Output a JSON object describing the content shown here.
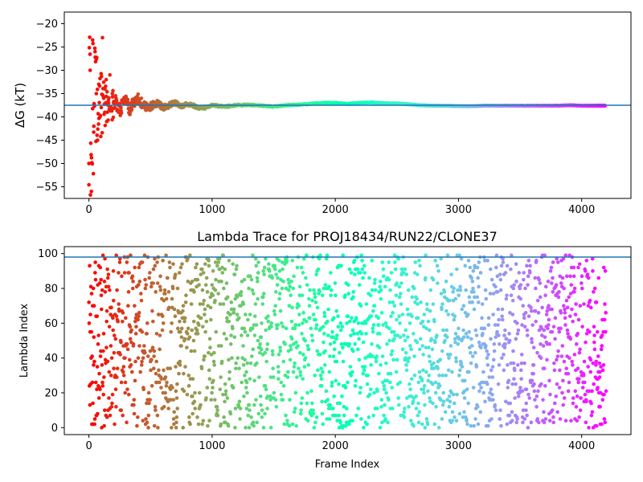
{
  "chart_data": [
    {
      "type": "scatter",
      "title": "",
      "xlabel": "",
      "ylabel": "ΔG (kT)",
      "xlim": [
        -200,
        4400
      ],
      "ylim": [
        -57.5,
        -17.5
      ],
      "xticks": [
        0,
        1000,
        2000,
        3000,
        4000
      ],
      "yticks": [
        -55,
        -50,
        -45,
        -40,
        -35,
        -30,
        -25,
        -20
      ],
      "hline": -37.5,
      "hline_color": "#1f77b4",
      "colormap": "rainbow (reversed: red at start, violet at end)",
      "grid": false,
      "description": "Running free energy estimate per frame; large scatter (-57 to -23) in first ~200 frames converging to about -37.5",
      "series": [
        {
          "x": [
            0,
            10,
            20,
            30,
            40,
            50,
            60,
            70,
            80,
            90,
            100,
            110,
            120,
            130,
            140,
            150,
            160,
            170,
            180,
            190,
            200,
            220,
            240,
            260,
            280,
            300,
            330,
            360,
            400,
            440,
            480,
            520,
            560,
            600,
            650,
            700,
            750,
            800,
            850,
            900,
            950,
            1000,
            1100,
            1200,
            1300,
            1400,
            1500,
            1600,
            1700,
            1800,
            1900,
            2000,
            2100,
            2200,
            2300,
            2400,
            2500,
            2600,
            2700,
            2800,
            2900,
            3000,
            3100,
            3200,
            3300,
            3400,
            3500,
            3600,
            3700,
            3800,
            3900,
            4000,
            4100,
            4190
          ],
          "y": [
            -50,
            -30,
            -56,
            -23.5,
            -42,
            -26,
            -35,
            -45,
            -33,
            -40,
            -38,
            -23,
            -36,
            -34,
            -32,
            -39,
            -37,
            -31,
            -38,
            -35,
            -37,
            -36,
            -39,
            -38,
            -37,
            -36,
            -38.5,
            -37,
            -36,
            -37.5,
            -38,
            -37.5,
            -37,
            -38,
            -37.5,
            -37,
            -37.8,
            -37.2,
            -37.6,
            -38.2,
            -38,
            -37.5,
            -37.8,
            -37.5,
            -37.4,
            -37.6,
            -37.8,
            -37.5,
            -37.4,
            -37.2,
            -37.0,
            -37.0,
            -37.2,
            -37.0,
            -36.9,
            -37.1,
            -37.1,
            -37.3,
            -37.5,
            -37.6,
            -37.6,
            -37.7,
            -37.7,
            -37.6,
            -37.6,
            -37.6,
            -37.6,
            -37.6,
            -37.6,
            -37.6,
            -37.5,
            -37.6,
            -37.6,
            -37.6
          ]
        }
      ]
    },
    {
      "type": "scatter",
      "title": "Lambda Trace for PROJ18434/RUN22/CLONE37",
      "xlabel": "Frame Index",
      "ylabel": "Lambda Index",
      "xlim": [
        -200,
        4400
      ],
      "ylim": [
        -4,
        104
      ],
      "xticks": [
        0,
        1000,
        2000,
        3000,
        4000
      ],
      "yticks": [
        0,
        20,
        40,
        60,
        80,
        100
      ],
      "hline": 98,
      "hline_color": "#1f77b4",
      "colormap": "rainbow (reversed: red at start, violet at end)",
      "grid": false,
      "frame_count": 4200,
      "lambda_range": [
        0,
        99
      ],
      "description": "Lambda index (0-99) visited at each frame, spread uniformly across the range for all frames 0-4200"
    }
  ]
}
